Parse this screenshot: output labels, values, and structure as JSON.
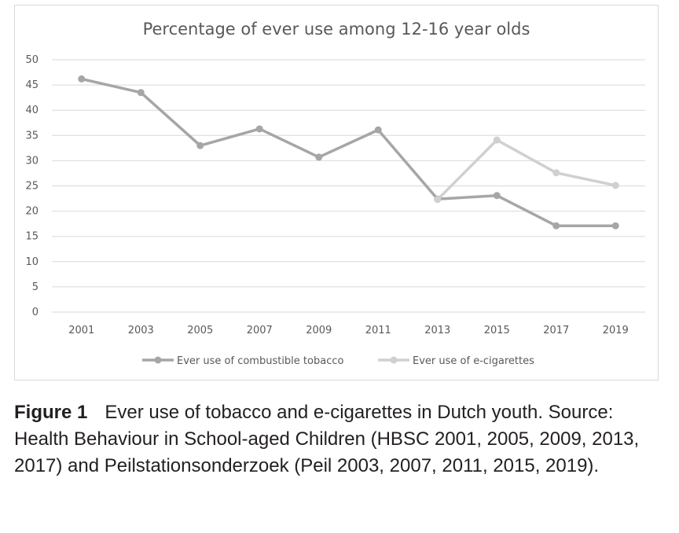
{
  "chart_data": {
    "type": "line",
    "title": "Percentage of ever use among 12-16 year olds",
    "categories": [
      "2001",
      "2003",
      "2005",
      "2007",
      "2009",
      "2011",
      "2013",
      "2015",
      "2017",
      "2019"
    ],
    "y_ticks": [
      "0",
      "5",
      "10",
      "15",
      "20",
      "25",
      "30",
      "35",
      "40",
      "45",
      "50"
    ],
    "ylim": [
      0,
      50
    ],
    "grid": true,
    "legend_position": "bottom",
    "series": [
      {
        "name": "Ever use of combustible tobacco",
        "color": "#a6a6a6",
        "values": [
          46.2,
          43.5,
          33.0,
          36.3,
          30.7,
          36.1,
          22.4,
          23.1,
          17.1,
          17.1
        ]
      },
      {
        "name": "Ever use of e-cigarettes",
        "color": "#d0d0d0",
        "values": [
          null,
          null,
          null,
          null,
          null,
          null,
          22.3,
          34.1,
          27.6,
          25.1
        ]
      }
    ]
  },
  "caption": {
    "label": "Figure 1",
    "text": "Ever use of tobacco and e-cigarettes in Dutch youth. Source: Health Behaviour in School-aged Children (HBSC 2001, 2005, 2009, 2013, 2017) and Peilstationsonderzoek (Peil 2003, 2007, 2011, 2015, 2019)."
  }
}
